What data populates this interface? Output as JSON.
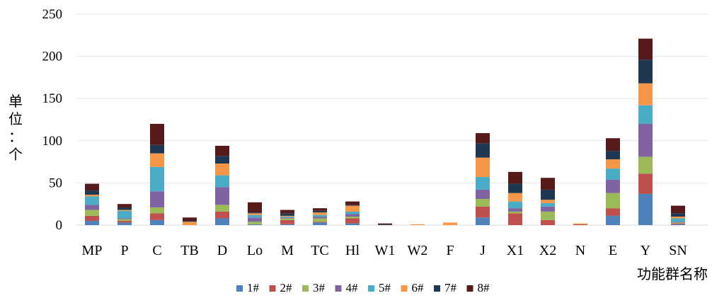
{
  "chart_data": {
    "type": "bar",
    "stacked": true,
    "categories": [
      "MP",
      "P",
      "C",
      "TB",
      "D",
      "Lo",
      "M",
      "TC",
      "Hl",
      "W1",
      "W2",
      "F",
      "J",
      "X1",
      "X2",
      "N",
      "E",
      "Y",
      "SN"
    ],
    "ylabel": "单位：个",
    "xlabel": "功能群名称",
    "ylim": [
      0,
      250
    ],
    "yticks": [
      0,
      50,
      100,
      150,
      200,
      250
    ],
    "grid": true,
    "legend_position": "bottom",
    "series": [
      {
        "name": "1#",
        "color": "#4F81BD",
        "values": [
          5,
          3,
          6,
          0,
          8,
          1,
          1,
          3,
          2,
          0,
          0,
          0,
          9,
          0,
          0,
          0,
          11,
          37,
          1
        ]
      },
      {
        "name": "2#",
        "color": "#C0504D",
        "values": [
          6,
          2,
          8,
          0,
          8,
          0,
          5,
          1,
          6,
          0,
          0,
          0,
          13,
          14,
          6,
          1,
          9,
          24,
          1
        ]
      },
      {
        "name": "3#",
        "color": "#9BBB59",
        "values": [
          7,
          2,
          7,
          0,
          8,
          3,
          2,
          4,
          2,
          0,
          0,
          0,
          9,
          2,
          10,
          0,
          18,
          20,
          1
        ]
      },
      {
        "name": "4#",
        "color": "#8064A2",
        "values": [
          6,
          1,
          19,
          0,
          21,
          5,
          1,
          2,
          3,
          0,
          0,
          0,
          11,
          4,
          6,
          0,
          16,
          39,
          1
        ]
      },
      {
        "name": "5#",
        "color": "#4BACC6",
        "values": [
          10,
          9,
          29,
          0,
          14,
          3,
          1,
          2,
          3,
          0,
          0,
          0,
          15,
          8,
          4,
          0,
          13,
          22,
          4
        ]
      },
      {
        "name": "6#",
        "color": "#F79646",
        "values": [
          2,
          1,
          16,
          4,
          14,
          2,
          1,
          3,
          7,
          0,
          1,
          3,
          23,
          10,
          4,
          1,
          11,
          26,
          2
        ]
      },
      {
        "name": "7#",
        "color": "#1F3752",
        "values": [
          5,
          3,
          10,
          1,
          9,
          1,
          3,
          2,
          1,
          1,
          0,
          0,
          17,
          11,
          12,
          0,
          10,
          28,
          4
        ]
      },
      {
        "name": "8#",
        "color": "#561A1A",
        "values": [
          8,
          4,
          25,
          4,
          12,
          12,
          4,
          3,
          4,
          1,
          0,
          0,
          12,
          14,
          14,
          0,
          15,
          25,
          9
        ]
      }
    ]
  }
}
